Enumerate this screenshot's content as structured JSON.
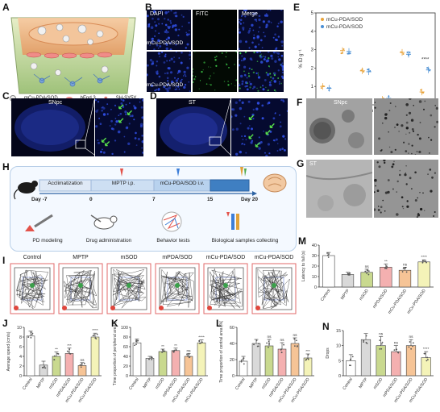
{
  "panels": {
    "A": {
      "label": "A",
      "legend": [
        "mCu-PDA/SOD",
        "bEnd.3",
        "SH-SY5Y"
      ]
    },
    "B": {
      "label": "B",
      "columns": [
        "DAPI",
        "FITC",
        "Merge"
      ],
      "rows": [
        "mCu-PDA/SOD",
        "mCu-PDA/SOD"
      ]
    },
    "C": {
      "label": "C",
      "region": "SNpc"
    },
    "D": {
      "label": "D",
      "region": "ST"
    },
    "E": {
      "label": "E"
    },
    "F": {
      "label": "F",
      "region": "SNpc"
    },
    "G": {
      "label": "G",
      "region": "ST"
    },
    "H": {
      "label": "H",
      "phases": [
        "Acclimatization",
        "MPTP i.p.",
        "mCu-PDA/SOD i.v."
      ],
      "days": [
        "Day -7",
        "0",
        "7",
        "15",
        "Day 20"
      ],
      "steps": [
        "PD modeling",
        "Drug administration",
        "Behavior tests",
        "Biological samples collecting"
      ]
    },
    "I": {
      "label": "I",
      "groups": [
        "Control",
        "MPTP",
        "mSOD",
        "mPDA/SOD",
        "mCu-PDA/SOD",
        "mCu-PDA/SOD"
      ]
    },
    "J": {
      "label": "J"
    },
    "K": {
      "label": "K"
    },
    "L": {
      "label": "L"
    },
    "M": {
      "label": "M"
    },
    "N": {
      "label": "N"
    }
  },
  "colors": {
    "control": "#ffffff",
    "mptp": "#d9d9d9",
    "msod": "#c9d98f",
    "mpdasod": "#f4b0b0",
    "mcupdasod_orange": "#f6c496",
    "mcupdasod_yellow": "#f4f3b8",
    "dapi_blue": "#2540d8",
    "fitc_green": "#3fd04a"
  },
  "chart_data": [
    {
      "panel": "E",
      "type": "scatter",
      "ylabel": "% ID g⁻¹",
      "categories": [
        "Heart",
        "Liver",
        "Spleen",
        "Lung",
        "Kidney",
        "Brain"
      ],
      "ylim": [
        0,
        5
      ],
      "yticks": [
        0,
        1,
        2,
        3,
        4,
        5
      ],
      "series": [
        {
          "name": "mCu-PDA/SOD",
          "color": "#e8a33a",
          "values": [
            1.0,
            2.95,
            1.85,
            0.3,
            2.85,
            0.7
          ]
        },
        {
          "name": "mCu-PDA/SOD",
          "color": "#4a8fd4",
          "values": [
            0.9,
            2.9,
            1.8,
            0.35,
            2.75,
            1.9
          ]
        }
      ],
      "annotations": [
        {
          "category": "Brain",
          "text": "****"
        }
      ]
    },
    {
      "panel": "J",
      "type": "bar",
      "ylabel": "Average speed (cm/s)",
      "categories": [
        "Control",
        "MPTP",
        "mSOD",
        "mPDA/SOD",
        "mCu-PDA/SOD",
        "mCu-PDA/SOD"
      ],
      "values": [
        8.2,
        2.2,
        4.0,
        4.6,
        2.1,
        8.0
      ],
      "errors": [
        1.0,
        0.8,
        0.9,
        1.1,
        0.6,
        0.8
      ],
      "ylim": [
        0,
        10
      ],
      "yticks": [
        0,
        2,
        4,
        6,
        8,
        10
      ],
      "sig": [
        "",
        "",
        "**",
        "***",
        "ns",
        "****"
      ]
    },
    {
      "panel": "K",
      "type": "bar",
      "ylabel": "Time proportion of peripheral area (%)",
      "categories": [
        "Control",
        "MPTP",
        "mSOD",
        "mPDA/SOD",
        "mCu-PDA/SOD",
        "mCu-PDA/SOD"
      ],
      "values": [
        68,
        36,
        50,
        52,
        40,
        68
      ],
      "errors": [
        8,
        4,
        5,
        5,
        6,
        6
      ],
      "ylim": [
        0,
        100
      ],
      "yticks": [
        0,
        20,
        40,
        60,
        80,
        100
      ],
      "sig": [
        "",
        "",
        "**",
        "**",
        "ns",
        "****"
      ]
    },
    {
      "panel": "L",
      "type": "bar",
      "ylabel": "Time proportion of central area (%)",
      "categories": [
        "Control",
        "MPTP",
        "mSOD",
        "mPDA/SOD",
        "mCu-PDA/SOD",
        "mCu-PDA/SOD"
      ],
      "values": [
        18,
        40,
        37,
        33,
        40,
        22
      ],
      "errors": [
        6,
        5,
        8,
        8,
        7,
        5
      ],
      "ylim": [
        0,
        60
      ],
      "yticks": [
        0,
        20,
        40,
        60
      ],
      "sig": [
        "",
        "",
        "ns",
        "ns",
        "ns",
        "***"
      ]
    },
    {
      "panel": "M",
      "type": "bar",
      "ylabel": "Latency to fall (s)",
      "categories": [
        "Control",
        "MPTP",
        "mSOD",
        "mPDA/SOD",
        "mCu-PDA/SOD",
        "mCu-PDA/SOD"
      ],
      "values": [
        30,
        12,
        14,
        19,
        16,
        24
      ],
      "errors": [
        3,
        2,
        3,
        3,
        3,
        2
      ],
      "ylim": [
        0,
        40
      ],
      "yticks": [
        0,
        10,
        20,
        30,
        40
      ],
      "sig": [
        "",
        "",
        "ns",
        "**",
        "ns",
        "****"
      ]
    },
    {
      "panel": "N",
      "type": "bar",
      "ylabel": "Drops",
      "categories": [
        "Control",
        "MPTP",
        "mSOD",
        "mPDA/SOD",
        "mCu-PDA/SOD",
        "mCu-PDA/SOD"
      ],
      "values": [
        5,
        12,
        10,
        8,
        10,
        6
      ],
      "errors": [
        2,
        2,
        3,
        2,
        2,
        2
      ],
      "ylim": [
        0,
        15
      ],
      "yticks": [
        0,
        5,
        10,
        15
      ],
      "sig": [
        "",
        "",
        "ns",
        "ns",
        "ns",
        "****"
      ]
    }
  ]
}
